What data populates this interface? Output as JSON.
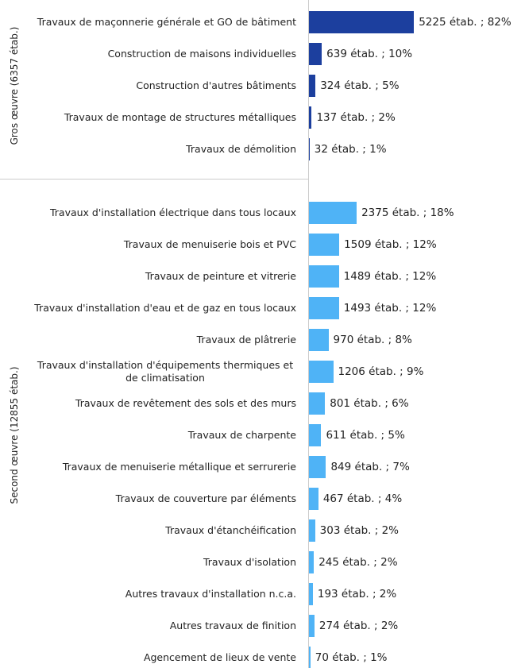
{
  "chart_data": {
    "type": "bar",
    "orientation": "horizontal",
    "xlim": [
      0,
      10000
    ],
    "groups": [
      {
        "name": "Gros œuvre (6357 étab.)",
        "color": "#1c3f9e",
        "categories": [
          "Travaux de maçonnerie générale et GO de bâtiment",
          "Construction de maisons individuelles",
          "Construction d'autres bâtiments",
          "Travaux de montage de structures métalliques",
          "Travaux de démolition"
        ],
        "values": [
          5225,
          639,
          324,
          137,
          32
        ],
        "value_labels": [
          "5225 étab. ; 82%",
          "639 étab. ; 10%",
          "324 étab. ; 5%",
          "137 étab. ; 2%",
          "32 étab. ; 1%"
        ]
      },
      {
        "name": "Second œuvre (12855 étab.)",
        "color": "#4fb3f6",
        "categories": [
          "Travaux d'installation électrique dans tous locaux",
          "Travaux de menuiserie bois et PVC",
          "Travaux de peinture et vitrerie",
          "Travaux d'installation d'eau et de gaz en tous locaux",
          "Travaux de plâtrerie",
          "Travaux d'installation d'équipements thermiques et de climatisation",
          "Travaux de revêtement des sols et des murs",
          "Travaux de charpente",
          "Travaux de menuiserie métallique et serrurerie",
          "Travaux de couverture par éléments",
          "Travaux d'étanchéification",
          "Travaux d'isolation",
          "Autres travaux d'installation n.c.a.",
          "Autres travaux de finition",
          "Agencement de lieux de vente"
        ],
        "values": [
          2375,
          1509,
          1489,
          1493,
          970,
          1206,
          801,
          611,
          849,
          467,
          303,
          245,
          193,
          274,
          70
        ],
        "value_labels": [
          "2375 étab. ; 18%",
          "1509 étab. ; 12%",
          "1489 étab. ; 12%",
          "1493 étab. ; 12%",
          "970 étab. ; 8%",
          "1206 étab. ; 9%",
          "801 étab. ; 6%",
          "611 étab. ; 5%",
          "849 étab. ; 7%",
          "467 étab. ; 4%",
          "303 étab. ; 2%",
          "245 étab. ; 2%",
          "193 étab. ; 2%",
          "274 étab. ; 2%",
          "70 étab. ; 1%"
        ]
      }
    ]
  }
}
